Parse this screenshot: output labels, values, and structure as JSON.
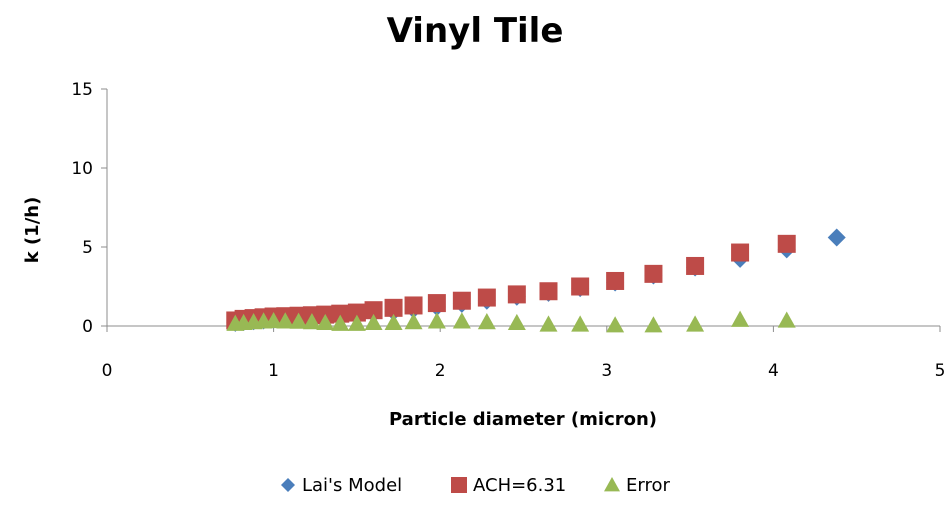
{
  "chart_data": {
    "type": "scatter",
    "title": "Vinyl Tile",
    "xlabel": "Particle diameter (micron)",
    "ylabel": "k (1/h)",
    "xlim": [
      0,
      5
    ],
    "ylim": [
      0,
      15
    ],
    "x_ticks": [
      "0",
      "1",
      "2",
      "3",
      "4",
      "5"
    ],
    "y_ticks": [
      "0",
      "5",
      "10",
      "15"
    ],
    "grid": false,
    "legend_position": "bottom",
    "series": [
      {
        "name": "Lai's Model",
        "marker": "diamond",
        "color": "#4a7ebb",
        "x": [
          0.77,
          0.82,
          0.88,
          0.94,
          1.0,
          1.07,
          1.15,
          1.23,
          1.31,
          1.4,
          1.5,
          1.6,
          1.72,
          1.84,
          1.98,
          2.13,
          2.28,
          2.46,
          2.65,
          2.84,
          3.05,
          3.28,
          3.53,
          3.8,
          4.08,
          4.38
        ],
        "y": [
          0.2,
          0.25,
          0.3,
          0.35,
          0.4,
          0.45,
          0.5,
          0.55,
          0.6,
          0.65,
          0.7,
          0.78,
          0.9,
          1.05,
          1.2,
          1.4,
          1.6,
          1.85,
          2.1,
          2.4,
          2.75,
          3.2,
          3.7,
          4.25,
          4.85,
          5.6
        ]
      },
      {
        "name": "ACH=6.31",
        "marker": "square",
        "color": "#be4b48",
        "x": [
          0.77,
          0.82,
          0.88,
          0.94,
          1.0,
          1.07,
          1.15,
          1.23,
          1.31,
          1.4,
          1.5,
          1.6,
          1.72,
          1.84,
          1.98,
          2.13,
          2.28,
          2.46,
          2.65,
          2.84,
          3.05,
          3.28,
          3.53,
          3.8,
          4.08
        ],
        "y": [
          0.35,
          0.45,
          0.5,
          0.55,
          0.6,
          0.62,
          0.65,
          0.68,
          0.72,
          0.78,
          0.85,
          1.0,
          1.15,
          1.3,
          1.45,
          1.6,
          1.8,
          2.0,
          2.2,
          2.5,
          2.85,
          3.3,
          3.8,
          4.65,
          5.2
        ]
      },
      {
        "name": "Error",
        "marker": "triangle",
        "color": "#98b954",
        "x": [
          0.77,
          0.82,
          0.88,
          0.94,
          1.0,
          1.07,
          1.15,
          1.23,
          1.31,
          1.4,
          1.5,
          1.6,
          1.72,
          1.84,
          1.98,
          2.13,
          2.28,
          2.46,
          2.65,
          2.84,
          3.05,
          3.28,
          3.53,
          3.8,
          4.08
        ],
        "y": [
          0.15,
          0.2,
          0.25,
          0.3,
          0.32,
          0.3,
          0.28,
          0.25,
          0.2,
          0.15,
          0.15,
          0.2,
          0.2,
          0.25,
          0.3,
          0.3,
          0.25,
          0.2,
          0.1,
          0.1,
          0.05,
          0.05,
          0.1,
          0.4,
          0.35
        ]
      }
    ]
  }
}
